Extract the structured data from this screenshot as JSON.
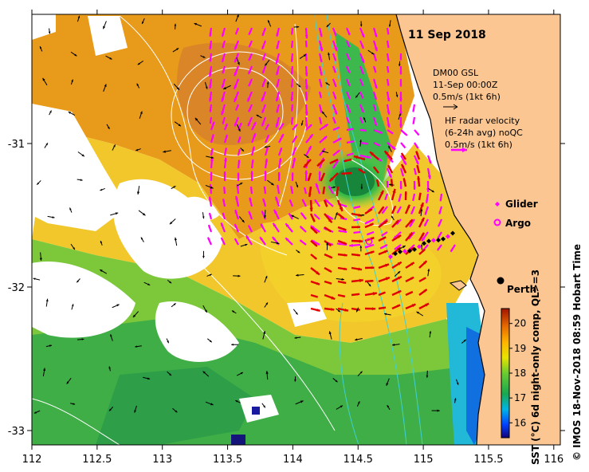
{
  "map": {
    "date_title": "11 Sep 2018",
    "legend_model": {
      "line1": "DM00 GSL",
      "line2": "11-Sep 00:00Z",
      "line3": "0.5m/s (1kt 6h)"
    },
    "legend_radar": {
      "line1": "HF radar velocity",
      "line2": "(6-24h avg) noQC",
      "line3": "0.5m/s (1kt 6h)"
    },
    "legend_glider": "Glider",
    "legend_argo": "Argo",
    "place_label": "Perth",
    "colorbar": {
      "label": "SST (°C) 6d night-only comp, QL>=3",
      "ticks": [
        "20",
        "19",
        "18",
        "17",
        "16"
      ],
      "range": [
        15.4,
        20.6
      ]
    },
    "credit": "© IMOS 18-Nov-2018 08:59 Hobart Time",
    "x_ticks": [
      "112",
      "112.5",
      "113",
      "113.5",
      "114",
      "114.5",
      "115",
      "115.5",
      "116"
    ],
    "y_ticks": [
      "-31",
      "-32",
      "-33"
    ],
    "lon_range": [
      112,
      116.05
    ],
    "lat_range": [
      -33.1,
      -30.1
    ],
    "colors": {
      "land": "#fbc692",
      "radar_vectors": "#ff00ff",
      "model_vectors": "#000000",
      "eddy_vectors": "#e00000",
      "contours": "#ffffff",
      "bathymetry": "#40d0d0",
      "glider": "#ff00ff",
      "argo": "#ff00ff"
    }
  }
}
